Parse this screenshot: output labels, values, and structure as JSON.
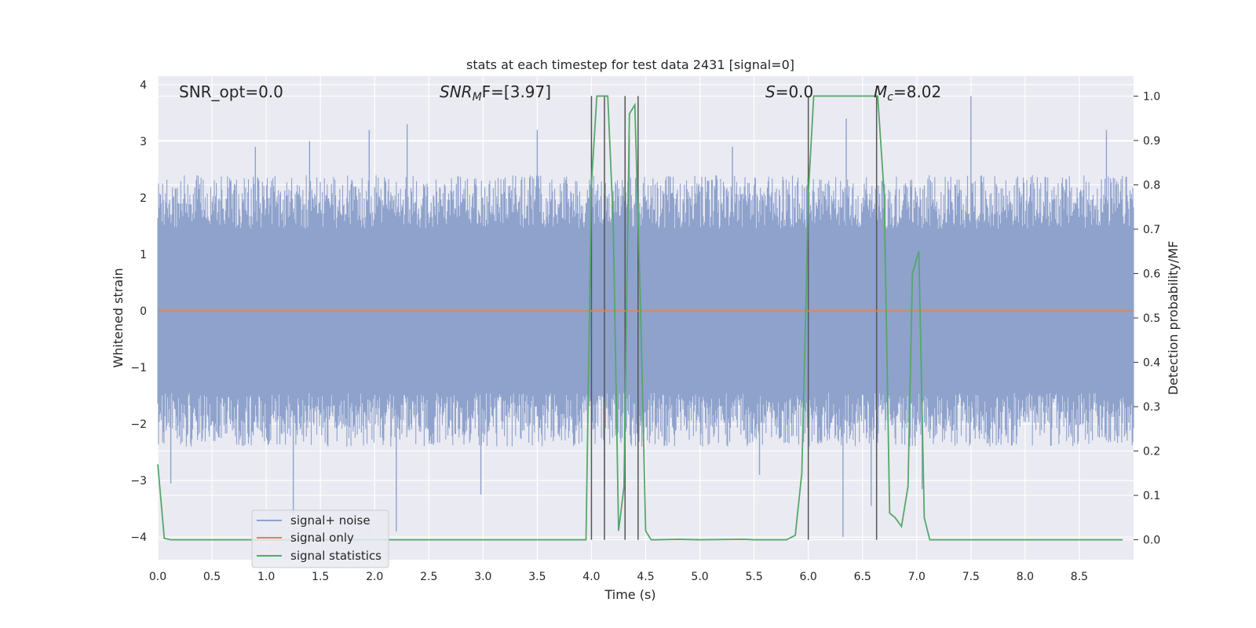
{
  "chart_data": {
    "type": "line",
    "title": "stats at each timestep for test data 2431 [signal=0]",
    "xlabel": "Time (s)",
    "ylabel": "Whitened strain",
    "y2label": "Detection probability/MF",
    "xlim": [
      0.0,
      9.0
    ],
    "ylim": [
      -4.4,
      4.15
    ],
    "y2lim": [
      -0.045,
      1.045
    ],
    "x_ticks": [
      "0.0",
      "0.5",
      "1.0",
      "1.5",
      "2.0",
      "2.5",
      "3.0",
      "3.5",
      "4.0",
      "4.5",
      "5.0",
      "5.5",
      "6.0",
      "6.5",
      "7.0",
      "7.5",
      "8.0",
      "8.5"
    ],
    "y_ticks": [
      "−4",
      "−3",
      "−2",
      "−1",
      "0",
      "1",
      "2",
      "3",
      "4"
    ],
    "y2_ticks": [
      "0.0",
      "0.1",
      "0.2",
      "0.3",
      "0.4",
      "0.5",
      "0.6",
      "0.7",
      "0.8",
      "0.9",
      "1.0"
    ],
    "grid": true,
    "legend_position": "lower-left",
    "annotations": [
      {
        "text": "SNR_opt=0.0",
        "x": 0.2,
        "y": 3.78
      },
      {
        "main": "SNR",
        "sub": "M",
        "rest": "F=[3.97]",
        "x": 2.6,
        "y": 3.78
      },
      {
        "main": "S",
        "rest": "=0.0",
        "x": 5.6,
        "y": 3.78
      },
      {
        "main": "M",
        "sub": "c",
        "rest": "=8.02",
        "x": 6.6,
        "y": 3.78
      }
    ],
    "series": [
      {
        "name": "signal+ noise",
        "color": "#8ea2cc",
        "description_axis": "left",
        "duration_s": 9.0,
        "envelope_upper": 1.9,
        "envelope_lower": -1.9,
        "peaks": [
          {
            "x": 0.9,
            "y": 2.9
          },
          {
            "x": 1.4,
            "y": 3.0
          },
          {
            "x": 1.95,
            "y": 3.2
          },
          {
            "x": 2.3,
            "y": 3.3
          },
          {
            "x": 3.5,
            "y": 3.2
          },
          {
            "x": 4.35,
            "y": 3.1
          },
          {
            "x": 5.3,
            "y": 2.9
          },
          {
            "x": 6.35,
            "y": 3.4
          },
          {
            "x": 7.5,
            "y": 3.8
          },
          {
            "x": 8.75,
            "y": 3.2
          },
          {
            "x": 0.12,
            "y": -3.05
          },
          {
            "x": 1.25,
            "y": -3.6
          },
          {
            "x": 2.2,
            "y": -3.9
          },
          {
            "x": 2.98,
            "y": -3.25
          },
          {
            "x": 6.32,
            "y": -4.0
          },
          {
            "x": 6.58,
            "y": -3.45
          },
          {
            "x": 4.12,
            "y": -3.1
          },
          {
            "x": 7.05,
            "y": -3.15
          },
          {
            "x": 5.55,
            "y": -2.9
          }
        ]
      },
      {
        "name": "signal only",
        "color": "#dd8452",
        "description_axis": "left",
        "x": [
          0.0,
          9.0
        ],
        "y": [
          0.0,
          0.0
        ]
      },
      {
        "name": "signal statistics",
        "color": "#55a868",
        "description_axis": "right",
        "x": [
          0.0,
          0.06,
          0.12,
          3.95,
          4.0,
          4.05,
          4.1,
          4.15,
          4.2,
          4.25,
          4.3,
          4.35,
          4.4,
          4.45,
          4.5,
          4.55,
          4.6,
          4.8,
          5.0,
          5.4,
          5.5,
          5.8,
          5.88,
          5.94,
          5.98,
          6.0,
          6.05,
          6.08,
          6.6,
          6.64,
          6.7,
          6.75,
          6.8,
          6.86,
          6.92,
          6.96,
          7.02,
          7.07,
          7.12,
          8.9
        ],
        "y": [
          0.17,
          0.003,
          0.0,
          0.0,
          0.8,
          1.0,
          1.0,
          1.0,
          0.72,
          0.02,
          0.12,
          0.96,
          0.98,
          0.55,
          0.02,
          0.0,
          0.0,
          0.001,
          0.0,
          0.001,
          0.0,
          0.0,
          0.01,
          0.15,
          0.55,
          0.78,
          1.0,
          1.0,
          1.0,
          1.0,
          0.78,
          0.06,
          0.05,
          0.03,
          0.12,
          0.6,
          0.65,
          0.05,
          0.0,
          0.0
        ]
      }
    ],
    "vertical_markers": [
      4.0,
      4.12,
      4.31,
      4.43,
      6.0,
      6.63
    ]
  }
}
